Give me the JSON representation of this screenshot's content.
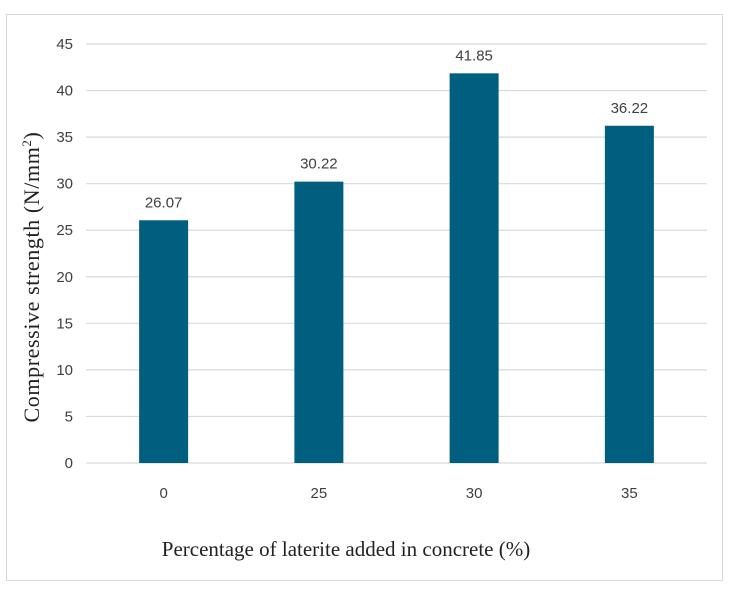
{
  "chart_data": {
    "type": "bar",
    "categories": [
      "0",
      "25",
      "30",
      "35"
    ],
    "values": [
      26.07,
      30.22,
      41.85,
      36.22
    ],
    "data_labels": [
      "26.07",
      "30.22",
      "41.85",
      "36.22"
    ],
    "title": "",
    "xlabel": "Percentage of laterite added in concrete  (%)",
    "ylabel": {
      "main": "Compressive strength (N/mm",
      "superscript": "2",
      "close": ")"
    },
    "ylim": [
      0,
      45
    ],
    "yticks": [
      "0",
      "5",
      "10",
      "15",
      "20",
      "25",
      "30",
      "35",
      "40",
      "45"
    ],
    "grid": true,
    "legend": "none",
    "bar_color": "#005f7f",
    "grid_color": "#d9d9d9"
  }
}
